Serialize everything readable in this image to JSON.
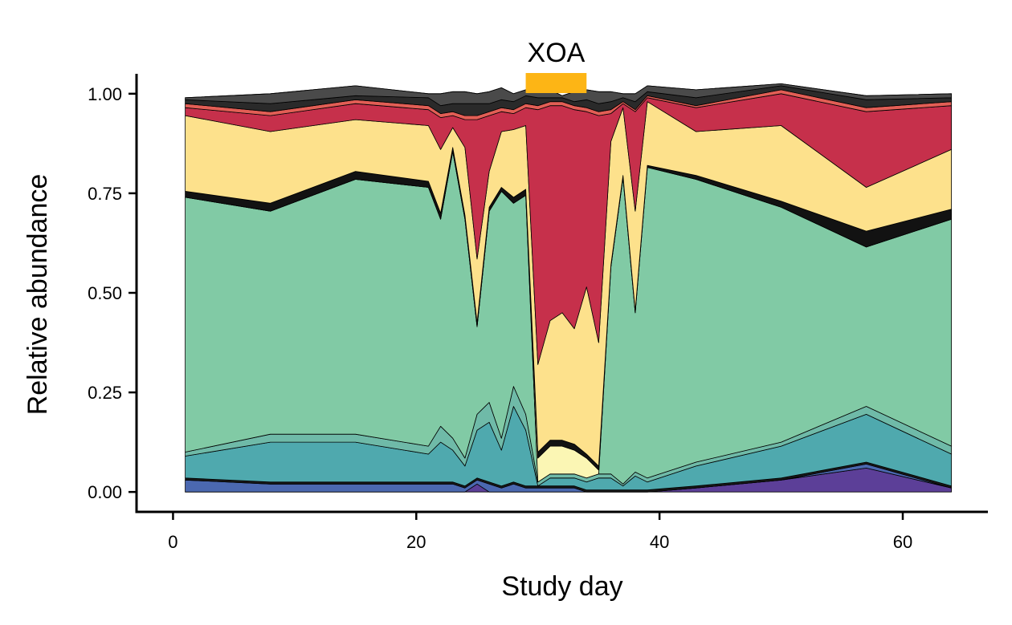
{
  "chart_data": {
    "type": "area",
    "xlabel": "Study day",
    "ylabel": "Relative abundance",
    "xlim": [
      -3,
      67
    ],
    "ylim": [
      -0.05,
      1.05
    ],
    "x_ticks": [
      0,
      20,
      40,
      60
    ],
    "y_ticks": [
      0.0,
      0.25,
      0.5,
      0.75,
      1.0
    ],
    "x_tick_labels": [
      "0",
      "20",
      "40",
      "60"
    ],
    "y_tick_labels": [
      "0.00",
      "0.25",
      "0.50",
      "0.75",
      "1.00"
    ],
    "grid": false,
    "legend": "none",
    "annotation": {
      "label": "XOA",
      "x_start": 29,
      "x_end": 34,
      "color": "#FDB515"
    },
    "x": [
      1,
      8,
      15,
      21,
      22,
      23,
      24,
      25,
      26,
      27,
      28,
      29,
      30,
      31,
      32,
      33,
      34,
      35,
      36,
      37,
      38,
      39,
      43,
      50,
      57,
      64
    ],
    "series": [
      {
        "color": "#5C3F98",
        "values": [
          0.0,
          0.0,
          0.0,
          0.0,
          0.0,
          0.0,
          0.0,
          0.02,
          0.0,
          0.0,
          0.0,
          0.0,
          0.0,
          0.0,
          0.0,
          0.0,
          0.0,
          0.0,
          0.0,
          0.0,
          0.0,
          0.0,
          0.01,
          0.03,
          0.06,
          0.01
        ]
      },
      {
        "color": "#4B68B0",
        "values": [
          0.03,
          0.02,
          0.02,
          0.02,
          0.02,
          0.02,
          0.01,
          0.01,
          0.02,
          0.01,
          0.02,
          0.01,
          0.01,
          0.01,
          0.01,
          0.01,
          0.0,
          0.0,
          0.0,
          0.0,
          0.0,
          0.0,
          0.0,
          0.0,
          0.01,
          0.0
        ]
      },
      {
        "color": "#1A1A1A",
        "values": [
          0.005,
          0.005,
          0.005,
          0.005,
          0.005,
          0.005,
          0.005,
          0.005,
          0.005,
          0.005,
          0.005,
          0.005,
          0.005,
          0.005,
          0.005,
          0.005,
          0.005,
          0.005,
          0.005,
          0.005,
          0.005,
          0.005,
          0.005,
          0.005,
          0.005,
          0.005
        ]
      },
      {
        "color": "#4FA9AE",
        "values": [
          0.055,
          0.1,
          0.1,
          0.07,
          0.1,
          0.08,
          0.05,
          0.12,
          0.15,
          0.09,
          0.19,
          0.14,
          0.0,
          0.02,
          0.02,
          0.02,
          0.02,
          0.03,
          0.03,
          0.01,
          0.035,
          0.02,
          0.05,
          0.08,
          0.12,
          0.08
        ]
      },
      {
        "color": "#6FBAA8",
        "values": [
          0.01,
          0.02,
          0.02,
          0.02,
          0.04,
          0.03,
          0.02,
          0.04,
          0.05,
          0.03,
          0.05,
          0.04,
          0.01,
          0.01,
          0.01,
          0.01,
          0.01,
          0.01,
          0.01,
          0.005,
          0.01,
          0.01,
          0.01,
          0.01,
          0.02,
          0.02
        ]
      },
      {
        "color": "#81CAA5",
        "values": [
          0.64,
          0.56,
          0.64,
          0.65,
          0.52,
          0.72,
          0.6,
          0.22,
          0.48,
          0.62,
          0.46,
          0.55,
          0.0,
          0.0,
          0.0,
          0.0,
          0.0,
          0.0,
          0.52,
          0.77,
          0.4,
          0.78,
          0.71,
          0.59,
          0.4,
          0.57
        ]
      },
      {
        "color": "#FBF6B4",
        "values": [
          0.0,
          0.0,
          0.0,
          0.0,
          0.0,
          0.0,
          0.0,
          0.0,
          0.0,
          0.0,
          0.0,
          0.0,
          0.06,
          0.07,
          0.07,
          0.06,
          0.05,
          0.01,
          0.0,
          0.0,
          0.0,
          0.0,
          0.0,
          0.0,
          0.0,
          0.0
        ]
      },
      {
        "color": "#121212",
        "values": [
          0.015,
          0.02,
          0.02,
          0.015,
          0.015,
          0.01,
          0.01,
          0.01,
          0.01,
          0.01,
          0.015,
          0.015,
          0.015,
          0.015,
          0.015,
          0.015,
          0.01,
          0.01,
          0.005,
          0.005,
          0.005,
          0.005,
          0.01,
          0.015,
          0.04,
          0.025
        ]
      },
      {
        "color": "#FDE18C",
        "values": [
          0.19,
          0.18,
          0.13,
          0.14,
          0.16,
          0.05,
          0.17,
          0.16,
          0.09,
          0.14,
          0.17,
          0.16,
          0.22,
          0.3,
          0.32,
          0.29,
          0.42,
          0.31,
          0.31,
          0.17,
          0.25,
          0.16,
          0.11,
          0.19,
          0.11,
          0.15
        ]
      },
      {
        "color": "#C6304B",
        "values": [
          0.02,
          0.04,
          0.04,
          0.04,
          0.08,
          0.03,
          0.07,
          0.35,
          0.14,
          0.05,
          0.04,
          0.045,
          0.64,
          0.54,
          0.52,
          0.55,
          0.44,
          0.57,
          0.07,
          0.01,
          0.25,
          0.01,
          0.06,
          0.08,
          0.19,
          0.11
        ]
      },
      {
        "color": "#E25E55",
        "values": [
          0.01,
          0.01,
          0.01,
          0.01,
          0.01,
          0.01,
          0.01,
          0.01,
          0.01,
          0.01,
          0.01,
          0.01,
          0.01,
          0.01,
          0.01,
          0.01,
          0.01,
          0.01,
          0.01,
          0.005,
          0.005,
          0.005,
          0.005,
          0.01,
          0.01,
          0.01
        ]
      },
      {
        "color": "#2A2A2A",
        "values": [
          0.01,
          0.02,
          0.01,
          0.02,
          0.02,
          0.02,
          0.03,
          0.03,
          0.02,
          0.02,
          0.02,
          0.02,
          0.02,
          0.01,
          0.01,
          0.01,
          0.02,
          0.02,
          0.02,
          0.01,
          0.02,
          0.01,
          0.02,
          0.01,
          0.02,
          0.01
        ]
      },
      {
        "color": "#4A4A4A",
        "values": [
          0.005,
          0.025,
          0.025,
          0.01,
          0.03,
          0.03,
          0.03,
          0.025,
          0.03,
          0.03,
          0.02,
          0.015,
          0.02,
          0.02,
          0.005,
          0.025,
          0.025,
          0.03,
          0.025,
          0.01,
          0.02,
          0.015,
          0.02,
          0.005,
          0.01,
          0.01
        ]
      },
      {
        "color": "#C8C8C8",
        "values": [
          0.0,
          0.0,
          0.0,
          0.0,
          0.0,
          0.0,
          0.0,
          0.0,
          0.0,
          0.0,
          0.0,
          0.0,
          0.0,
          0.0,
          0.0,
          0.0,
          0.0,
          0.0,
          0.0,
          0.0,
          0.0,
          0.0,
          0.0,
          0.0,
          0.0,
          0.0
        ]
      }
    ]
  }
}
